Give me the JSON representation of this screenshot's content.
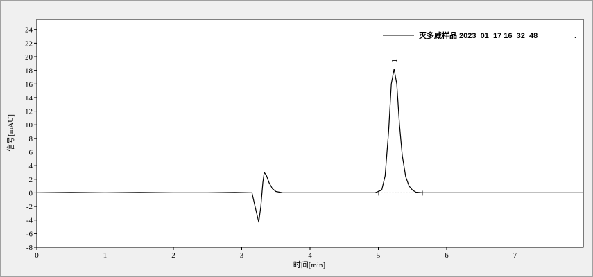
{
  "chart_data": {
    "type": "line",
    "xlabel": "时间[min]",
    "ylabel": "信号[mAU]",
    "xlim": [
      0,
      8
    ],
    "ylim": [
      -8,
      25.5
    ],
    "xticks": [
      0,
      1,
      2,
      3,
      4,
      5,
      6,
      7
    ],
    "yticks": [
      -8,
      -6,
      -4,
      -2,
      0,
      2,
      4,
      6,
      8,
      10,
      12,
      14,
      16,
      18,
      20,
      22,
      24
    ],
    "grid": false,
    "legend_position": "top-right",
    "legend_dot": ".",
    "series": [
      {
        "name": "灭多威样品 2023_01_17 16_32_48",
        "color": "#000000",
        "x": [
          0,
          0.5,
          1,
          1.5,
          2,
          2.5,
          2.9,
          3.15,
          3.2,
          3.25,
          3.28,
          3.31,
          3.33,
          3.36,
          3.4,
          3.45,
          3.5,
          3.6,
          4,
          4.5,
          4.95,
          5.05,
          5.1,
          5.15,
          5.19,
          5.23,
          5.27,
          5.31,
          5.35,
          5.4,
          5.45,
          5.5,
          5.55,
          5.65,
          6,
          6.5,
          7,
          7.5,
          8
        ],
        "y": [
          0,
          0.05,
          0,
          0.05,
          0,
          0,
          0.05,
          0,
          -2.2,
          -4.3,
          -2.0,
          1.5,
          3.0,
          2.6,
          1.5,
          0.6,
          0.2,
          0,
          0,
          0,
          0,
          0.4,
          2.5,
          9,
          16,
          18.2,
          16,
          10,
          5.5,
          2.4,
          1.0,
          0.4,
          0.1,
          0,
          0,
          0,
          0,
          0,
          0
        ]
      }
    ],
    "annotations": [
      {
        "text": "1",
        "x": 5.23,
        "y": 18.2,
        "type": "peak-label"
      }
    ],
    "baseline_segments": [
      {
        "x": [
          5.0,
          5.65
        ],
        "y": [
          0,
          0
        ]
      }
    ]
  }
}
